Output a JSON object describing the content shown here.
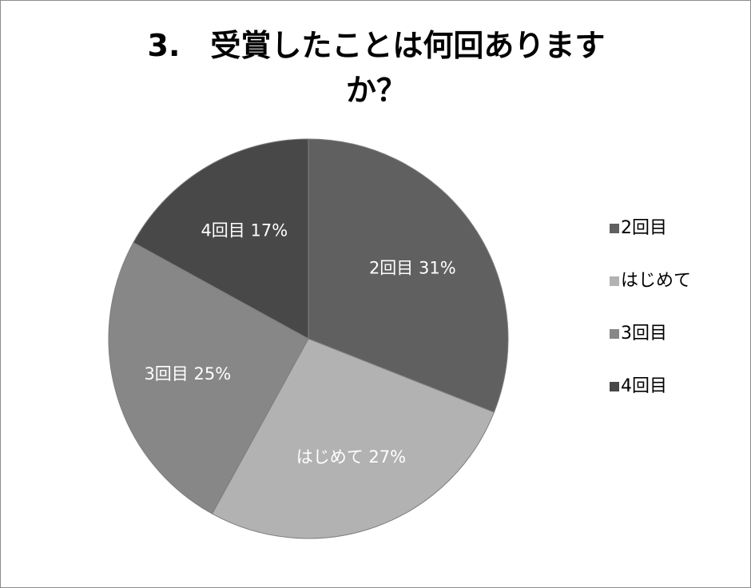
{
  "chart_data": {
    "type": "pie",
    "title": "3.　受賞したことは何回ありますか？",
    "title_lines": [
      "3.　受賞したことは何回あります",
      "か？"
    ],
    "categories": [
      "2回目",
      "はじめて",
      "3回目",
      "4回目"
    ],
    "values": [
      31,
      27,
      25,
      17
    ],
    "value_unit": "%",
    "colors": [
      "#606060",
      "#b2b2b2",
      "#878787",
      "#484848"
    ],
    "data_labels": [
      "2回目 31%",
      "はじめて 27%",
      "3回目 25%",
      "4回目 17%"
    ],
    "start_angle_deg": 0,
    "direction": "clockwise",
    "legend_position": "right",
    "legend": {
      "items": [
        "2回目",
        "はじめて",
        "3回目",
        "4回目"
      ]
    }
  }
}
